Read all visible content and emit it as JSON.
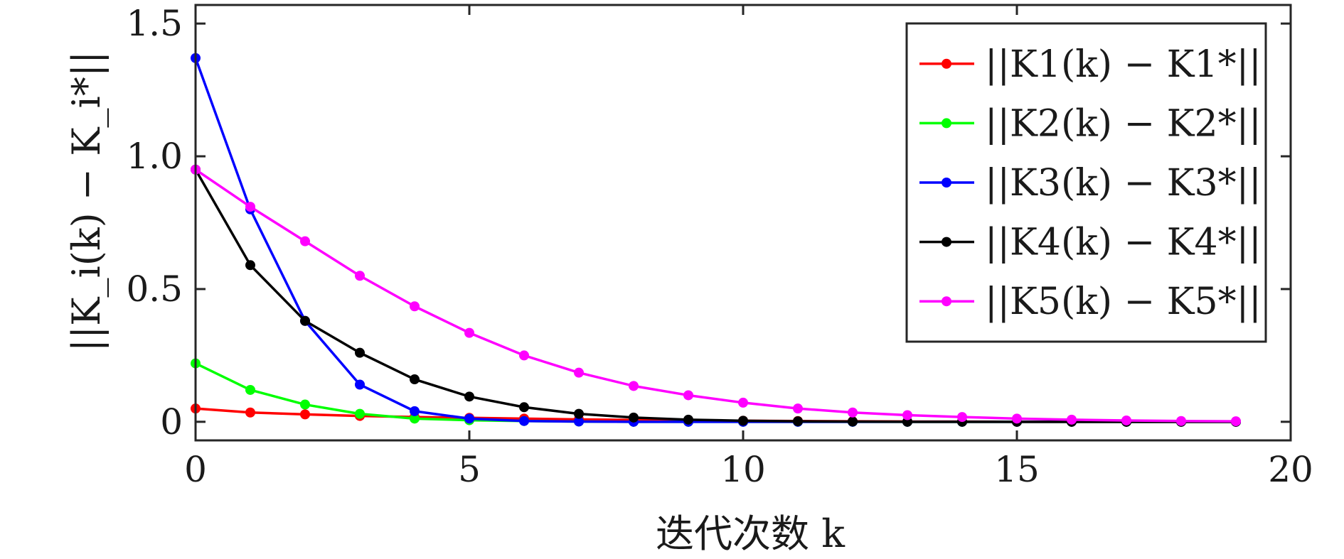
{
  "chart_data": {
    "type": "line",
    "xlabel": "迭代次数 k",
    "ylabel": "||K_i(k) − K_i*||",
    "xlim": [
      0,
      20
    ],
    "ylim": [
      -0.07,
      1.57
    ],
    "xticks": [
      0,
      5,
      10,
      15,
      20
    ],
    "xtick_labels": [
      "0",
      "5",
      "10",
      "15",
      "20"
    ],
    "yticks": [
      0,
      0.5,
      1.0,
      1.5
    ],
    "ytick_labels": [
      "0",
      "0.5",
      "1.0",
      "1.5"
    ],
    "grid": false,
    "legend_position": "top-right",
    "x": [
      0,
      1,
      2,
      3,
      4,
      5,
      6,
      7,
      8,
      9,
      10,
      11,
      12,
      13,
      14,
      15,
      16,
      17,
      18,
      19
    ],
    "series": [
      {
        "name": "||K1(k) − K1*||",
        "color": "#ff0000",
        "values": [
          0.05,
          0.035,
          0.028,
          0.022,
          0.018,
          0.015,
          0.012,
          0.009,
          0.007,
          0.005,
          0.004,
          0.003,
          0.002,
          0.001,
          0.001,
          0.0,
          0.0,
          0.0,
          0.0,
          0.0
        ]
      },
      {
        "name": "||K2(k) − K2*||",
        "color": "#00ff00",
        "values": [
          0.22,
          0.12,
          0.065,
          0.03,
          0.012,
          0.006,
          0.003,
          0.001,
          0.0,
          0.0,
          0.0,
          0.0,
          0.0,
          0.0,
          0.0,
          0.0,
          0.0,
          0.0,
          0.0,
          0.0
        ]
      },
      {
        "name": "||K3(k) − K3*||",
        "color": "#0000ff",
        "values": [
          1.37,
          0.8,
          0.38,
          0.14,
          0.04,
          0.012,
          0.003,
          0.001,
          0.0,
          0.0,
          0.0,
          0.0,
          0.0,
          0.0,
          0.0,
          0.0,
          0.0,
          0.0,
          0.0,
          0.0
        ]
      },
      {
        "name": "||K4(k) − K4*||",
        "color": "#000000",
        "values": [
          0.95,
          0.59,
          0.38,
          0.26,
          0.16,
          0.095,
          0.055,
          0.03,
          0.016,
          0.008,
          0.004,
          0.002,
          0.001,
          0.0,
          0.0,
          0.0,
          0.0,
          0.0,
          0.0,
          0.0
        ]
      },
      {
        "name": "||K5(k) − K5*||",
        "color": "#ff00ff",
        "values": [
          0.95,
          0.81,
          0.68,
          0.55,
          0.435,
          0.335,
          0.25,
          0.185,
          0.135,
          0.1,
          0.072,
          0.05,
          0.035,
          0.025,
          0.018,
          0.012,
          0.008,
          0.005,
          0.003,
          0.002
        ]
      }
    ]
  }
}
